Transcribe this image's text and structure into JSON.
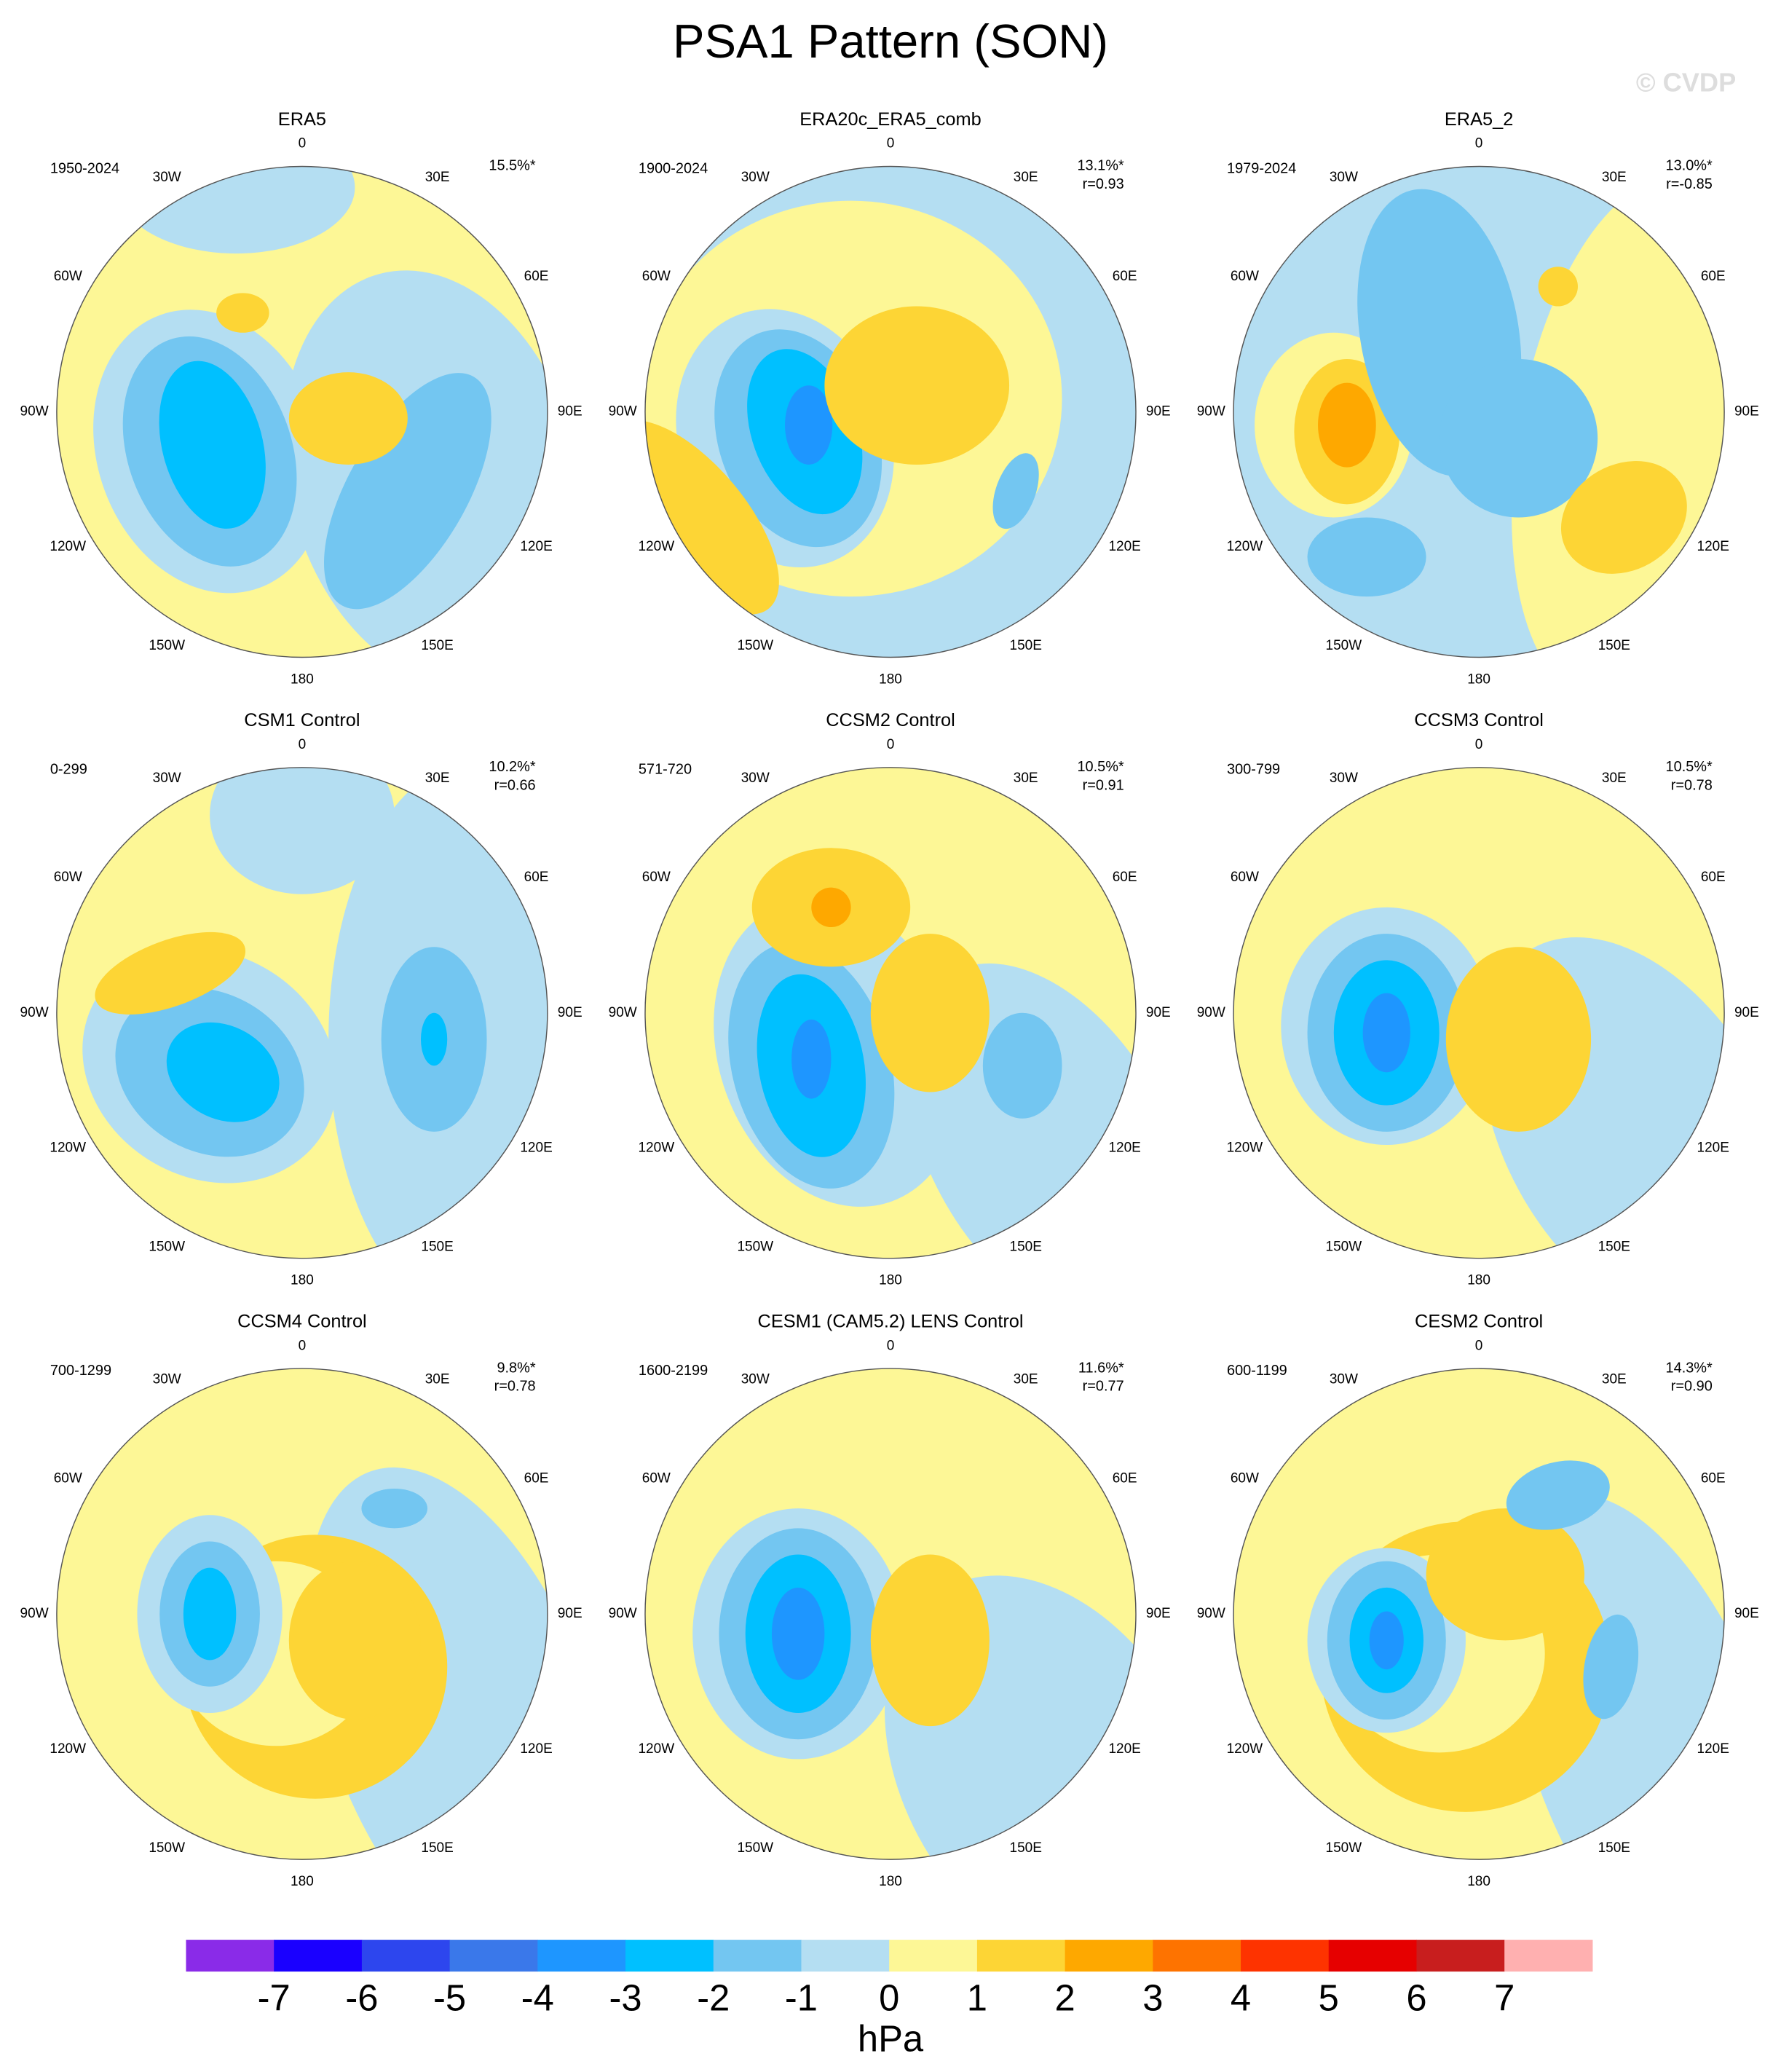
{
  "title": "PSA1 Pattern (SON)",
  "watermark": "© CVDP",
  "longitude_labels": [
    "0",
    "30E",
    "60E",
    "90E",
    "120E",
    "150E",
    "180",
    "150W",
    "120W",
    "90W",
    "60W",
    "30W"
  ],
  "panels": [
    {
      "title": "ERA5",
      "years": "1950-2024",
      "pct": "15.5%*"
    },
    {
      "title": "ERA20c_ERA5_comb",
      "years": "1900-2024",
      "pct": "13.1%*",
      "r": "r=0.93"
    },
    {
      "title": "ERA5_2",
      "years": "1979-2024",
      "pct": "13.0%*",
      "r": "r=-0.85"
    },
    {
      "title": "CSM1 Control",
      "years": "0-299",
      "pct": "10.2%*",
      "r": "r=0.66"
    },
    {
      "title": "CCSM2 Control",
      "years": "571-720",
      "pct": "10.5%*",
      "r": "r=0.91"
    },
    {
      "title": "CCSM3 Control",
      "years": "300-799",
      "pct": "10.5%*",
      "r": "r=0.78"
    },
    {
      "title": "CCSM4 Control",
      "years": "700-1299",
      "pct": "9.8%*",
      "r": "r=0.78"
    },
    {
      "title": "CESM1 (CAM5.2) LENS Control",
      "years": "1600-2199",
      "pct": "11.6%*",
      "r": "r=0.77"
    },
    {
      "title": "CESM2 Control",
      "years": "600-1199",
      "pct": "14.3%*",
      "r": "r=0.90"
    }
  ],
  "colorbar": {
    "colors": [
      "#8a2be8",
      "#1a00ff",
      "#2d46ee",
      "#3a78ea",
      "#1e96ff",
      "#00c0ff",
      "#73c6f1",
      "#b4def2",
      "#fdf796",
      "#fdd535",
      "#fea800",
      "#fe7300",
      "#fe3300",
      "#e60000",
      "#c81e1e",
      "#ffb0b0"
    ],
    "clim": [
      -8,
      8
    ],
    "ticks": [
      -7,
      -6,
      -5,
      -4,
      -3,
      -2,
      -1,
      0,
      1,
      2,
      3,
      4,
      5,
      6,
      7
    ],
    "label": "hPa"
  }
}
